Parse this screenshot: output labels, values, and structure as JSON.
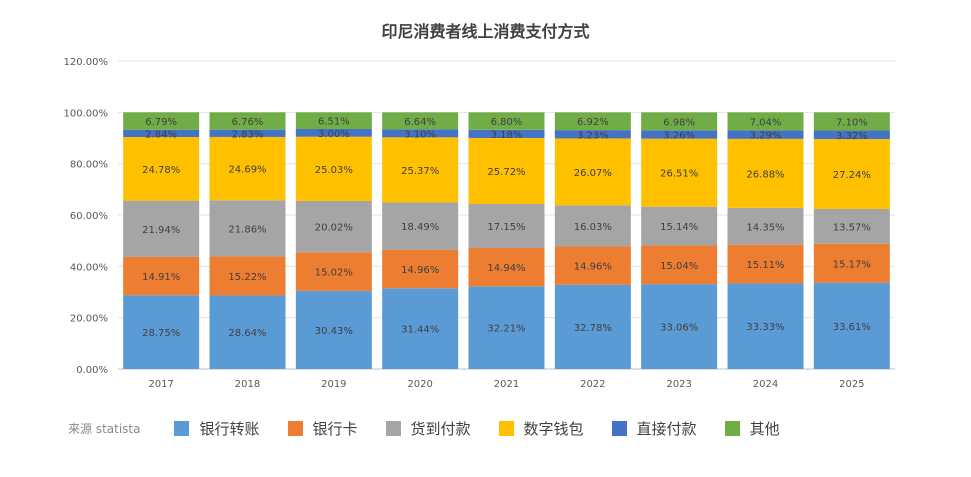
{
  "chart_data": {
    "type": "bar",
    "stacked": true,
    "title": "印尼消费者线上消费支付方式",
    "categories": [
      "2017",
      "2018",
      "2019",
      "2020",
      "2021",
      "2022",
      "2023",
      "2024",
      "2025"
    ],
    "ylim": [
      0,
      120
    ],
    "yticks": [
      "0.00%",
      "20.00%",
      "40.00%",
      "60.00%",
      "80.00%",
      "100.00%",
      "120.00%"
    ],
    "grid": true,
    "legend_position": "bottom",
    "series": [
      {
        "name": "银行转账",
        "color": "#5B9BD5",
        "values": [
          28.75,
          28.64,
          30.43,
          31.44,
          32.21,
          32.78,
          33.06,
          33.33,
          33.61
        ]
      },
      {
        "name": "银行卡",
        "color": "#ED7D31",
        "values": [
          14.91,
          15.22,
          15.02,
          14.96,
          14.94,
          14.96,
          15.04,
          15.11,
          15.17
        ]
      },
      {
        "name": "货到付款",
        "color": "#A5A5A5",
        "values": [
          21.94,
          21.86,
          20.02,
          18.49,
          17.15,
          16.03,
          15.14,
          14.35,
          13.57
        ]
      },
      {
        "name": "数字钱包",
        "color": "#FFC000",
        "values": [
          24.78,
          24.69,
          25.03,
          25.37,
          25.72,
          26.07,
          26.51,
          26.88,
          27.24
        ]
      },
      {
        "name": "直接付款",
        "color": "#4472C4",
        "values": [
          2.84,
          2.83,
          3.0,
          3.1,
          3.18,
          3.23,
          3.26,
          3.29,
          3.32
        ]
      },
      {
        "name": "其他",
        "color": "#70AD47",
        "values": [
          6.79,
          6.76,
          6.51,
          6.64,
          6.8,
          6.92,
          6.98,
          7.04,
          7.1
        ]
      }
    ],
    "source": "来源 statista"
  }
}
